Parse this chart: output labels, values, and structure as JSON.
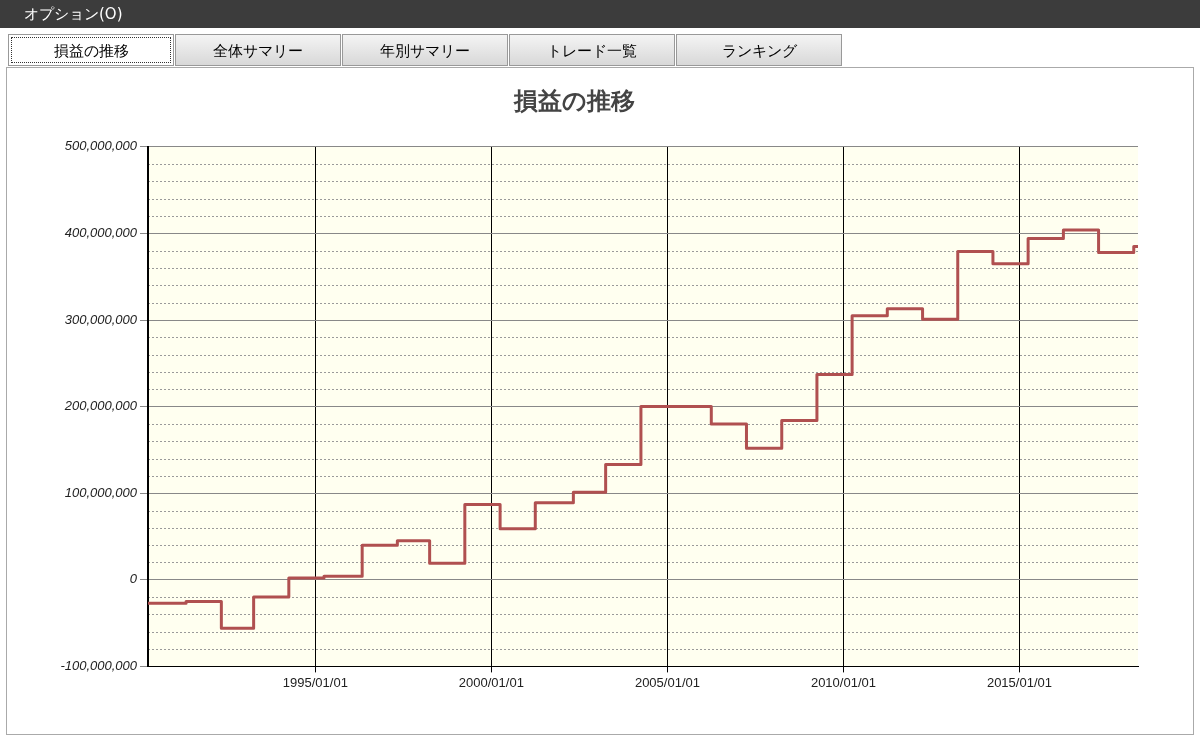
{
  "chart_data": {
    "type": "step",
    "title": "損益の推移",
    "annotations": [
      "オプション(O)",
      "損益の推移",
      "全体サマリー",
      "年別サマリー",
      "トレード一覧",
      "ランキング"
    ],
    "x": [
      "1990-04",
      "1991-05",
      "1992-05",
      "1993-04",
      "1994-04",
      "1995-04",
      "1996-05",
      "1997-05",
      "1998-04",
      "1999-04",
      "2000-04",
      "2001-04",
      "2002-05",
      "2003-04",
      "2004-04",
      "2006-04",
      "2007-04",
      "2008-04",
      "2009-04",
      "2010-04",
      "2011-04",
      "2012-04",
      "2013-04",
      "2014-04",
      "2015-04",
      "2016-04",
      "2017-04",
      "2018-04",
      "2018-05-15"
    ],
    "series": [
      {
        "color": "#b05050",
        "values": [
          -27000000,
          -25000000,
          -56000000,
          -20000000,
          2000000,
          4000000,
          40000000,
          45000000,
          19000000,
          87000000,
          59000000,
          89000000,
          101000000,
          133000000,
          200000000,
          180000000,
          152000000,
          184000000,
          237000000,
          305000000,
          313000000,
          301000000,
          379000000,
          365000000,
          394000000,
          404000000,
          378000000,
          385000000,
          385000000
        ]
      }
    ],
    "xlim": [
      "1990-04-01",
      "2018-05-15"
    ],
    "xticks": [
      {
        "value": "1995-01-01",
        "label": "1995/01/01"
      },
      {
        "value": "2000-01-01",
        "label": "2000/01/01"
      },
      {
        "value": "2005-01-01",
        "label": "2005/01/01"
      },
      {
        "value": "2010-01-01",
        "label": "2010/01/01"
      },
      {
        "value": "2015-01-01",
        "label": "2015/01/01"
      }
    ],
    "ylim": [
      -100000000,
      500000000
    ],
    "yticks": [
      {
        "value": -100000000,
        "label": "-100,000,000"
      },
      {
        "value": 0,
        "label": "0"
      },
      {
        "value": 100000000,
        "label": "100,000,000"
      },
      {
        "value": 200000000,
        "label": "200,000,000"
      },
      {
        "value": 300000000,
        "label": "300,000,000"
      },
      {
        "value": 400000000,
        "label": "400,000,000"
      },
      {
        "value": 500000000,
        "label": "500,000,000"
      }
    ],
    "grid": true,
    "legend": false,
    "marker": "none",
    "line_style": "solid"
  }
}
